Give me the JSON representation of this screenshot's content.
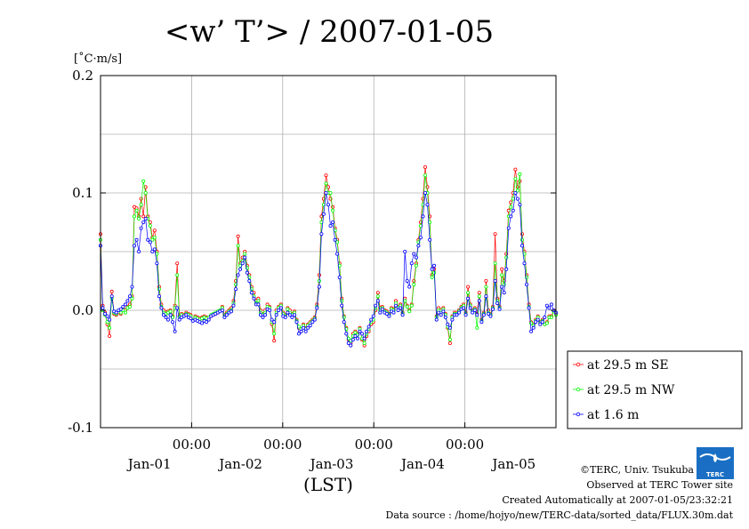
{
  "chart_data": {
    "type": "line",
    "title": "<w’ T’> / 2007-01-05",
    "ylabel_unit": "[˚C·m/s]",
    "xlabel": "(LST)",
    "ylim": [
      -0.1,
      0.2
    ],
    "yticks": [
      "0.2",
      "0.1",
      "0.0",
      "-0.1"
    ],
    "ytick_values": [
      0.2,
      0.1,
      0.0,
      -0.1
    ],
    "xlim_hours": [
      0,
      120
    ],
    "xticks_time": [
      "00:00",
      "00:00",
      "00:00",
      "00:00"
    ],
    "xtick_hours": [
      24,
      48,
      72,
      96
    ],
    "xticks_date": [
      "Jan-01",
      "Jan-02",
      "Jan-03",
      "Jan-04",
      "Jan-05"
    ],
    "xdate_hours": [
      12,
      36,
      60,
      84,
      108
    ],
    "grid": true,
    "legend_position": "right, lower",
    "series": [
      {
        "name": "at 29.5 m SE",
        "color": "#ff0000",
        "values": [
          0.065,
          0.004,
          -0.002,
          -0.012,
          -0.022,
          0.016,
          -0.003,
          -0.004,
          -0.002,
          -0.003,
          0.002,
          0.0,
          0.003,
          0.005,
          0.012,
          0.088,
          0.087,
          0.08,
          0.095,
          0.08,
          0.105,
          0.08,
          0.075,
          0.062,
          0.068,
          0.05,
          0.02,
          0.005,
          0.0,
          -0.002,
          -0.001,
          0.0,
          -0.005,
          0.004,
          0.04,
          -0.005,
          -0.003,
          -0.004,
          -0.002,
          -0.003,
          -0.004,
          -0.008,
          -0.005,
          -0.006,
          -0.007,
          -0.006,
          -0.005,
          -0.006,
          -0.007,
          -0.005,
          -0.004,
          -0.003,
          -0.002,
          0.0,
          0.003,
          -0.004,
          -0.002,
          0.0,
          0.002,
          0.008,
          0.025,
          0.063,
          0.04,
          0.045,
          0.05,
          0.038,
          0.03,
          0.02,
          0.015,
          0.008,
          0.01,
          0.0,
          -0.003,
          0.0,
          0.005,
          0.003,
          -0.012,
          -0.026,
          0.0,
          0.003,
          0.005,
          -0.002,
          -0.004,
          0.002,
          0.0,
          -0.003,
          -0.001,
          -0.008,
          -0.015,
          -0.018,
          -0.012,
          -0.015,
          -0.012,
          -0.01,
          -0.008,
          -0.006,
          0.005,
          0.03,
          0.08,
          0.095,
          0.115,
          0.105,
          0.095,
          0.088,
          0.07,
          0.06,
          0.04,
          0.01,
          -0.005,
          -0.015,
          -0.025,
          -0.028,
          -0.02,
          -0.018,
          -0.02,
          -0.015,
          -0.025,
          -0.03,
          -0.022,
          -0.018,
          -0.012,
          -0.01,
          0.0,
          0.015,
          0.002,
          0.003,
          0.0,
          -0.001,
          -0.003,
          0.002,
          0.001,
          0.008,
          0.003,
          0.005,
          -0.002,
          0.01,
          0.004,
          0.0,
          0.005,
          0.025,
          0.04,
          0.06,
          0.075,
          0.095,
          0.122,
          0.105,
          0.08,
          0.03,
          0.035,
          -0.005,
          0.002,
          0.0,
          0.002,
          -0.003,
          -0.015,
          -0.028,
          -0.005,
          -0.002,
          -0.002,
          0.0,
          0.003,
          0.005,
          -0.002,
          0.02,
          0.005,
          0.0,
          0.002,
          -0.003,
          0.015,
          -0.008,
          -0.002,
          0.025,
          0.0,
          -0.003,
          0.003,
          0.065,
          0.01,
          0.003,
          0.035,
          0.025,
          0.048,
          0.085,
          0.092,
          0.1,
          0.12,
          0.105,
          0.11,
          0.065,
          0.05,
          0.03,
          0.005,
          -0.01,
          -0.012,
          -0.008,
          -0.005,
          -0.01,
          -0.008,
          -0.012,
          -0.01,
          -0.005,
          -0.005,
          0.0,
          -0.003
        ]
      },
      {
        "name": "at 29.5 m NW",
        "color": "#00ff00",
        "values": [
          0.06,
          0.0,
          -0.004,
          -0.01,
          -0.015,
          0.01,
          -0.002,
          -0.003,
          0.0,
          -0.002,
          0.0,
          -0.002,
          0.002,
          0.003,
          0.01,
          0.08,
          0.085,
          0.078,
          0.09,
          0.11,
          0.1,
          0.078,
          0.072,
          0.06,
          0.062,
          0.048,
          0.018,
          0.003,
          -0.002,
          -0.003,
          -0.002,
          -0.001,
          -0.006,
          0.002,
          0.03,
          -0.006,
          -0.004,
          -0.005,
          -0.003,
          -0.004,
          -0.005,
          -0.008,
          -0.006,
          -0.007,
          -0.008,
          -0.007,
          -0.006,
          -0.007,
          -0.006,
          -0.004,
          -0.003,
          -0.002,
          -0.001,
          0.0,
          0.002,
          -0.005,
          -0.003,
          -0.001,
          0.0,
          0.006,
          0.022,
          0.055,
          0.038,
          0.042,
          0.048,
          0.036,
          0.028,
          0.018,
          0.012,
          0.006,
          0.008,
          -0.002,
          -0.004,
          -0.002,
          0.003,
          0.002,
          -0.01,
          -0.02,
          -0.002,
          0.002,
          0.004,
          -0.003,
          -0.005,
          0.001,
          -0.002,
          -0.004,
          -0.002,
          -0.009,
          -0.014,
          -0.016,
          -0.013,
          -0.016,
          -0.013,
          -0.011,
          -0.009,
          -0.007,
          0.003,
          0.025,
          0.075,
          0.09,
          0.108,
          0.1,
          0.1,
          0.085,
          0.068,
          0.058,
          0.038,
          0.008,
          -0.006,
          -0.016,
          -0.024,
          -0.026,
          -0.022,
          -0.019,
          -0.021,
          -0.016,
          -0.024,
          -0.028,
          -0.02,
          -0.016,
          -0.01,
          -0.008,
          0.002,
          0.012,
          0.0,
          0.002,
          -0.001,
          -0.002,
          -0.004,
          0.001,
          0.0,
          0.006,
          0.002,
          0.004,
          -0.003,
          0.008,
          0.003,
          -0.001,
          0.004,
          0.022,
          0.038,
          0.058,
          0.072,
          0.09,
          0.115,
          0.1,
          0.075,
          0.028,
          0.032,
          -0.006,
          0.0,
          -0.002,
          0.001,
          -0.004,
          -0.014,
          -0.025,
          -0.006,
          -0.003,
          -0.003,
          -0.001,
          0.002,
          0.004,
          -0.003,
          0.015,
          0.004,
          -0.001,
          0.001,
          -0.015,
          0.012,
          -0.009,
          -0.003,
          0.02,
          -0.002,
          -0.004,
          0.002,
          0.04,
          0.008,
          0.002,
          0.03,
          0.022,
          0.045,
          0.08,
          0.088,
          0.095,
          0.112,
          0.102,
          0.116,
          0.06,
          0.048,
          0.028,
          0.003,
          -0.011,
          -0.013,
          -0.009,
          -0.006,
          -0.011,
          -0.009,
          -0.012,
          -0.011,
          -0.006,
          -0.006,
          -0.001,
          -0.004
        ]
      },
      {
        "name": "at 1.6 m",
        "color": "#0000ff",
        "values": [
          0.055,
          0.002,
          -0.003,
          -0.005,
          -0.008,
          0.012,
          -0.001,
          -0.002,
          0.0,
          0.001,
          0.003,
          0.005,
          0.008,
          0.012,
          0.02,
          0.055,
          0.06,
          0.05,
          0.07,
          0.075,
          0.078,
          0.06,
          0.058,
          0.05,
          0.052,
          0.04,
          0.012,
          0.002,
          -0.004,
          -0.006,
          -0.008,
          -0.004,
          -0.01,
          -0.018,
          0.002,
          -0.008,
          -0.006,
          -0.005,
          -0.004,
          -0.006,
          -0.007,
          -0.009,
          -0.008,
          -0.009,
          -0.01,
          -0.011,
          -0.009,
          -0.01,
          -0.008,
          -0.005,
          -0.004,
          -0.003,
          -0.002,
          -0.001,
          0.0,
          -0.006,
          -0.004,
          -0.002,
          -0.001,
          0.004,
          0.018,
          0.03,
          0.035,
          0.04,
          0.045,
          0.032,
          0.025,
          0.015,
          0.01,
          0.005,
          0.005,
          -0.004,
          -0.006,
          -0.004,
          0.001,
          0.0,
          -0.008,
          -0.01,
          -0.004,
          0.0,
          0.002,
          -0.005,
          -0.006,
          -0.002,
          -0.004,
          -0.006,
          -0.004,
          -0.01,
          -0.02,
          -0.018,
          -0.015,
          -0.018,
          -0.015,
          -0.013,
          -0.01,
          -0.008,
          0.002,
          0.02,
          0.065,
          0.082,
          0.1,
          0.09,
          0.072,
          0.075,
          0.06,
          0.048,
          0.028,
          0.004,
          -0.01,
          -0.02,
          -0.028,
          -0.03,
          -0.025,
          -0.022,
          -0.024,
          -0.018,
          -0.02,
          -0.024,
          -0.018,
          -0.014,
          -0.008,
          -0.005,
          0.004,
          0.008,
          -0.002,
          0.001,
          -0.002,
          -0.003,
          -0.005,
          -0.001,
          -0.002,
          0.004,
          0.0,
          0.002,
          -0.004,
          0.05,
          0.025,
          0.02,
          0.04,
          0.048,
          0.045,
          0.055,
          0.062,
          0.08,
          0.1,
          0.09,
          0.06,
          0.035,
          0.038,
          -0.008,
          -0.002,
          -0.004,
          -0.001,
          -0.006,
          -0.012,
          -0.015,
          -0.008,
          -0.004,
          -0.004,
          -0.002,
          0.001,
          0.002,
          -0.004,
          0.01,
          0.002,
          -0.002,
          0.0,
          -0.004,
          0.008,
          -0.01,
          -0.004,
          0.012,
          -0.003,
          -0.005,
          0.001,
          0.025,
          0.006,
          0.001,
          0.02,
          0.015,
          0.035,
          0.07,
          0.08,
          0.085,
          0.1,
          0.095,
          0.09,
          0.055,
          0.04,
          0.022,
          0.002,
          -0.018,
          -0.015,
          -0.01,
          -0.008,
          -0.012,
          -0.01,
          -0.006,
          0.004,
          0.002,
          0.005,
          0.0,
          -0.002
        ]
      }
    ]
  },
  "credits": {
    "copyright": "©TERC, Univ. Tsukuba",
    "observed": "Observed at TERC Tower site",
    "created": "Created Automatically at 2007-01-05/23:32:21",
    "source": "Data source : /home/hojyo/new/TERC-data/sorted_data/FLUX.30m.dat",
    "logo_text": "TERC"
  }
}
